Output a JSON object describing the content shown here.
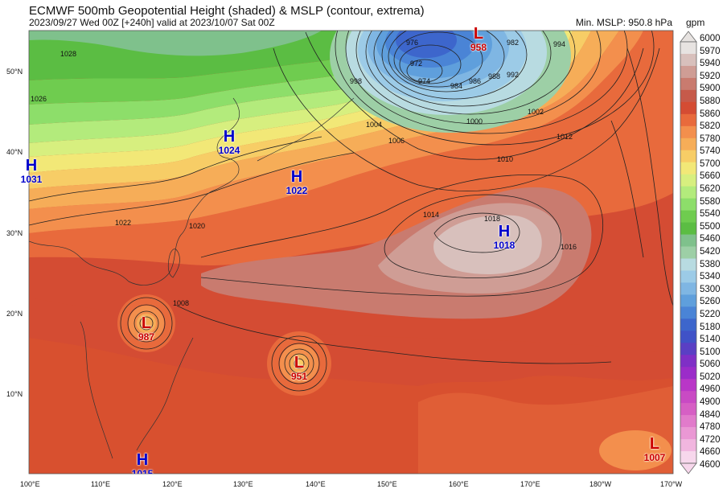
{
  "header": {
    "title": "ECMWF 500mb Geopotential Height (shaded) & MSLP (contour, extrema)",
    "subtitle": "2023/09/27 Wed 00Z [+240h] valid at 2023/10/07 Sat 00Z",
    "min_mslp": "Min. MSLP: 950.8 hPa"
  },
  "colorbar": {
    "unit": "gpm",
    "levels": [
      "6000",
      "5970",
      "5940",
      "5920",
      "5900",
      "5880",
      "5860",
      "5820",
      "5780",
      "5740",
      "5700",
      "5660",
      "5620",
      "5580",
      "5540",
      "5500",
      "5460",
      "5420",
      "5380",
      "5340",
      "5300",
      "5260",
      "5220",
      "5180",
      "5140",
      "5100",
      "5060",
      "5020",
      "4960",
      "4900",
      "4840",
      "4780",
      "4720",
      "4660",
      "4600"
    ],
    "colors": [
      "#e7e3e1",
      "#d8c0bc",
      "#cf9d95",
      "#c97b6f",
      "#c65a4a",
      "#d44c33",
      "#e86a3c",
      "#f38f4d",
      "#f6ad58",
      "#f7cd66",
      "#f2e877",
      "#d7ef7f",
      "#b3eb7c",
      "#8dde6a",
      "#6fcc4f",
      "#5bbd43",
      "#7fc18c",
      "#9dcfa6",
      "#b8dbe1",
      "#9ccbe7",
      "#7fb6e3",
      "#5f9fdc",
      "#4a84d6",
      "#3d66cc",
      "#4052c7",
      "#5a3fc4",
      "#7f2fc6",
      "#9b2cc9",
      "#b936c7",
      "#c94ac4",
      "#d65fc4",
      "#e17bcb",
      "#ea98d4",
      "#f1b6df",
      "#f7d7ec"
    ]
  },
  "axes": {
    "lon_labels": [
      "100°E",
      "110°E",
      "120°E",
      "130°E",
      "140°E",
      "150°E",
      "160°E",
      "170°E",
      "180°W",
      "170°W"
    ],
    "lat_labels": [
      "50°N",
      "40°N",
      "30°N",
      "20°N",
      "10°N"
    ]
  },
  "extrema": [
    {
      "kind": "H",
      "value": "1024",
      "color": "#0000cc"
    },
    {
      "kind": "H",
      "value": "1022",
      "color": "#0000cc"
    },
    {
      "kind": "H",
      "value": "1031",
      "color": "#0000cc"
    },
    {
      "kind": "H",
      "value": "1018",
      "color": "#0000cc"
    },
    {
      "kind": "H",
      "value": "1015",
      "color": "#0000cc"
    },
    {
      "kind": "L",
      "value": "958",
      "color": "#cc0000"
    },
    {
      "kind": "L",
      "value": "987",
      "color": "#cc0000"
    },
    {
      "kind": "L",
      "value": "951",
      "color": "#cc0000"
    },
    {
      "kind": "L",
      "value": "1007",
      "color": "#cc0000"
    }
  ],
  "isobar_labels": [
    "976",
    "982",
    "972",
    "974",
    "984",
    "986",
    "988",
    "992",
    "994",
    "998",
    "1000",
    "1002",
    "1004",
    "1006",
    "1008",
    "1010",
    "1012",
    "1014",
    "1016",
    "1018",
    "1020",
    "1022",
    "1026",
    "1028"
  ]
}
